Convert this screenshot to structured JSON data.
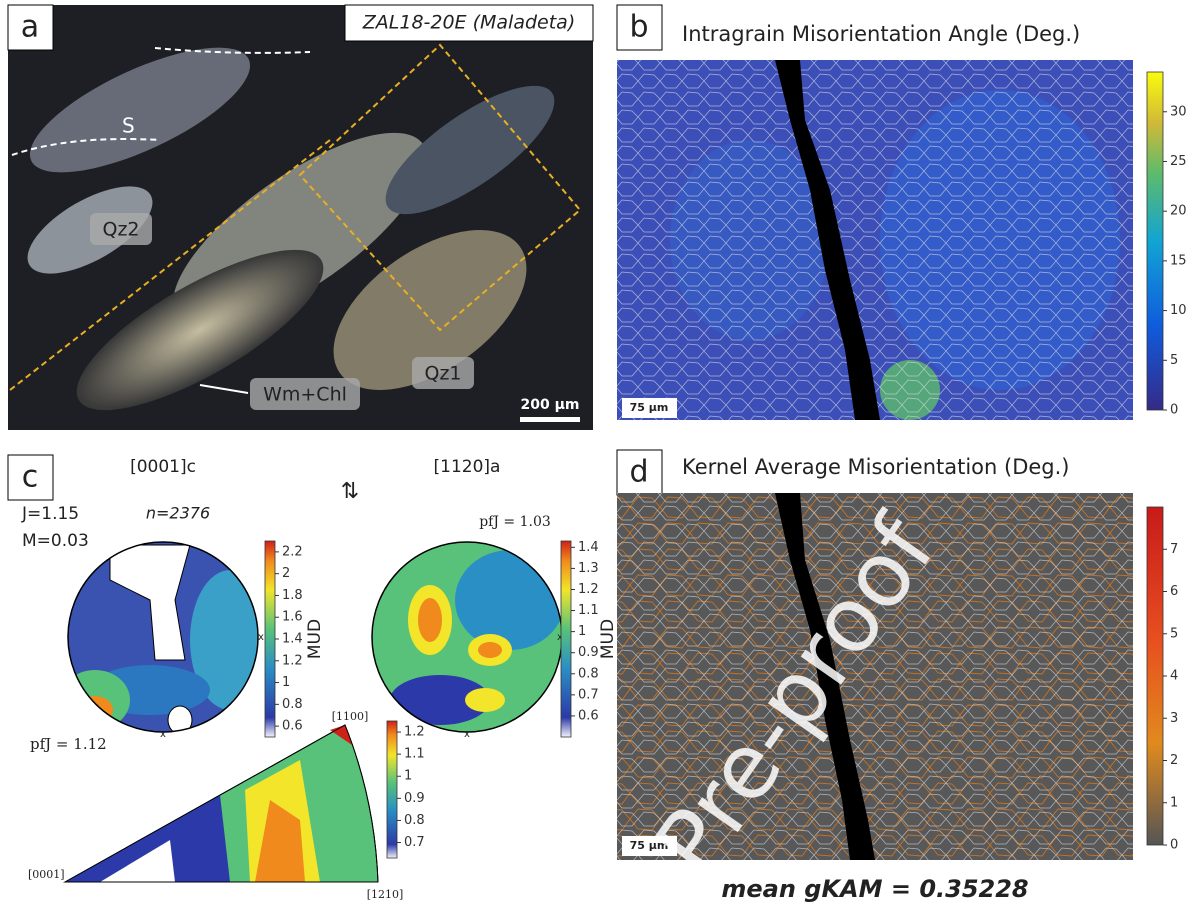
{
  "panel_a": {
    "label": "a",
    "sample": "ZAL18-20E (Maladeta)",
    "annotations": [
      "S",
      "Qz2",
      "Qz1",
      "Wm+Chl"
    ],
    "scale_bar": "200 µm"
  },
  "panel_b": {
    "label": "b",
    "title": "Intragrain Misorientation Angle (Deg.)",
    "scale_bar": "75 µm",
    "colorbar": {
      "lim": [
        0,
        34
      ],
      "ticks": [
        0,
        5,
        10,
        15,
        20,
        25,
        30
      ]
    }
  },
  "panel_c": {
    "label": "c",
    "pole_figures": [
      {
        "title": "[0001]c",
        "stats": [
          "J=1.15",
          "M=0.03"
        ],
        "n": "n=2376",
        "colorbar": {
          "label": "MUD",
          "lim": [
            0.5,
            2.3
          ],
          "ticks": [
            0.6,
            0.8,
            1,
            1.2,
            1.4,
            1.6,
            1.8,
            2,
            2.2
          ]
        }
      },
      {
        "title": "[1120]a",
        "pfJ": "pfJ = 1.03",
        "colorbar": {
          "label": "MUD",
          "lim": [
            0.5,
            1.43
          ],
          "ticks": [
            0.6,
            0.7,
            0.8,
            0.9,
            1,
            1.1,
            1.2,
            1.3,
            1.4
          ]
        }
      }
    ],
    "axis_mark": "x",
    "ipf": {
      "pfJ": "pfJ = 1.12",
      "corners": [
        "[1100]",
        "[0001]",
        "[1210]"
      ],
      "colorbar": {
        "lim": [
          0.63,
          1.25
        ],
        "ticks": [
          0.7,
          0.8,
          0.9,
          1,
          1.1,
          1.2
        ]
      }
    }
  },
  "panel_d": {
    "label": "d",
    "title": "Kernel Average Misorientation (Deg.)",
    "scale_bar": "75 µm",
    "mean": "mean gKAM = 0.35228",
    "colorbar": {
      "lim": [
        0,
        8
      ],
      "ticks": [
        0,
        1,
        2,
        3,
        4,
        5,
        6,
        7
      ]
    }
  },
  "watermark": "Pre-proof"
}
